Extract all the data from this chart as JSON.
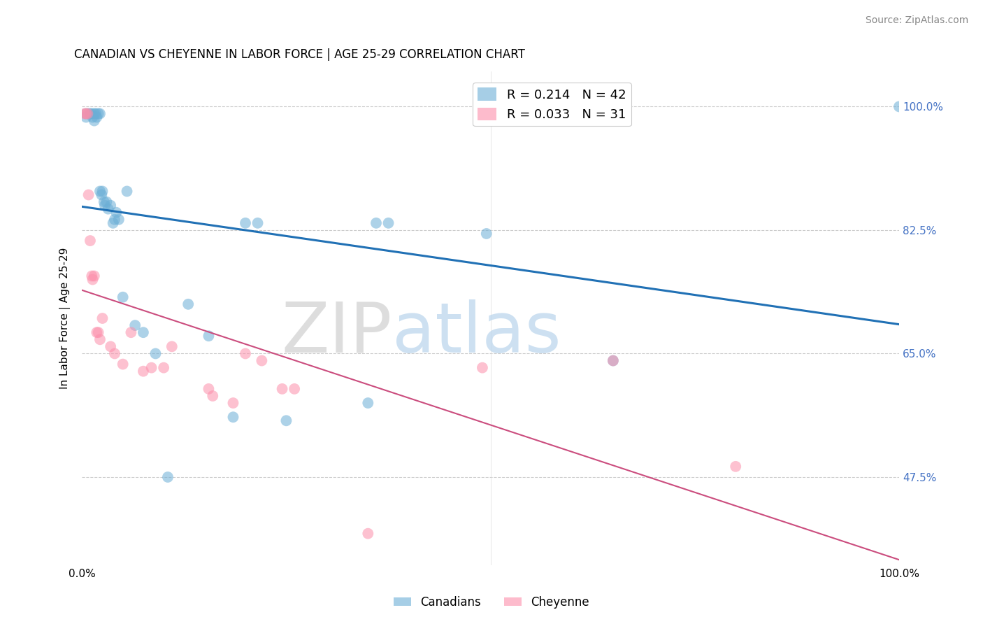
{
  "title": "CANADIAN VS CHEYENNE IN LABOR FORCE | AGE 25-29 CORRELATION CHART",
  "source": "Source: ZipAtlas.com",
  "ylabel": "In Labor Force | Age 25-29",
  "xlim": [
    0,
    1.0
  ],
  "ylim": [
    0.35,
    1.05
  ],
  "ytick_labels": [
    "47.5%",
    "65.0%",
    "82.5%",
    "100.0%"
  ],
  "ytick_values": [
    0.475,
    0.65,
    0.825,
    1.0
  ],
  "xtick_labels": [
    "0.0%",
    "100.0%"
  ],
  "xtick_values": [
    0.0,
    1.0
  ],
  "legend_r_blue": "0.214",
  "legend_n_blue": "42",
  "legend_r_pink": "0.033",
  "legend_n_pink": "31",
  "blue_color": "#6BAED6",
  "pink_color": "#FC8FAB",
  "blue_line_color": "#2171B5",
  "pink_line_color": "#CB4D7E",
  "watermark_zip": "ZIP",
  "watermark_atlas": "atlas",
  "canadians_x": [
    0.005,
    0.005,
    0.008,
    0.01,
    0.012,
    0.013,
    0.015,
    0.015,
    0.017,
    0.018,
    0.02,
    0.022,
    0.022,
    0.024,
    0.025,
    0.027,
    0.028,
    0.03,
    0.032,
    0.035,
    0.038,
    0.04,
    0.042,
    0.045,
    0.05,
    0.055,
    0.065,
    0.075,
    0.09,
    0.105,
    0.13,
    0.155,
    0.185,
    0.2,
    0.215,
    0.25,
    0.35,
    0.36,
    0.375,
    0.495,
    0.65,
    1.0
  ],
  "canadians_y": [
    0.99,
    0.985,
    0.99,
    0.99,
    0.99,
    0.985,
    0.99,
    0.98,
    0.99,
    0.985,
    0.99,
    0.99,
    0.88,
    0.875,
    0.88,
    0.865,
    0.86,
    0.865,
    0.855,
    0.86,
    0.835,
    0.84,
    0.85,
    0.84,
    0.73,
    0.88,
    0.69,
    0.68,
    0.65,
    0.475,
    0.72,
    0.675,
    0.56,
    0.835,
    0.835,
    0.555,
    0.58,
    0.835,
    0.835,
    0.82,
    0.64,
    1.0
  ],
  "cheyenne_x": [
    0.003,
    0.005,
    0.007,
    0.008,
    0.01,
    0.012,
    0.013,
    0.015,
    0.018,
    0.02,
    0.022,
    0.025,
    0.035,
    0.04,
    0.05,
    0.06,
    0.075,
    0.085,
    0.1,
    0.11,
    0.155,
    0.16,
    0.185,
    0.2,
    0.22,
    0.245,
    0.26,
    0.35,
    0.49,
    0.65,
    0.8
  ],
  "cheyenne_y": [
    0.99,
    0.99,
    0.99,
    0.875,
    0.81,
    0.76,
    0.755,
    0.76,
    0.68,
    0.68,
    0.67,
    0.7,
    0.66,
    0.65,
    0.635,
    0.68,
    0.625,
    0.63,
    0.63,
    0.66,
    0.6,
    0.59,
    0.58,
    0.65,
    0.64,
    0.6,
    0.6,
    0.395,
    0.63,
    0.64,
    0.49
  ]
}
